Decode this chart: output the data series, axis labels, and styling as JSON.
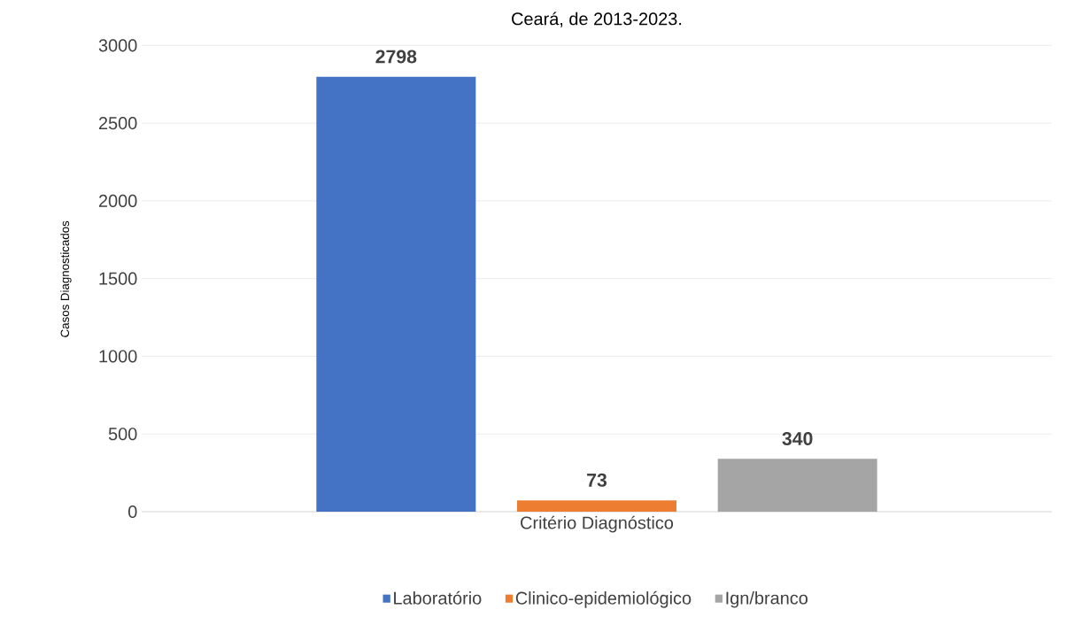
{
  "chart_data": {
    "type": "bar",
    "title": "Ceará, de 2013-2023.",
    "ylabel": "Casos Diagnosticados",
    "categories": [
      "Critério Diagnóstico"
    ],
    "series": [
      {
        "name": "Laboratório",
        "color": "#4472c4",
        "values": [
          2798
        ]
      },
      {
        "name": "Clinico-epidemiológico",
        "color": "#ed7d31",
        "values": [
          73
        ]
      },
      {
        "name": "Ign/branco",
        "color": "#a5a5a5",
        "values": [
          340
        ]
      }
    ],
    "ylim": [
      0,
      3000
    ],
    "yticks": [
      0,
      500,
      1000,
      1500,
      2000,
      2500,
      3000
    ],
    "grid": "y",
    "legend": "bottom",
    "data_labels": true
  }
}
